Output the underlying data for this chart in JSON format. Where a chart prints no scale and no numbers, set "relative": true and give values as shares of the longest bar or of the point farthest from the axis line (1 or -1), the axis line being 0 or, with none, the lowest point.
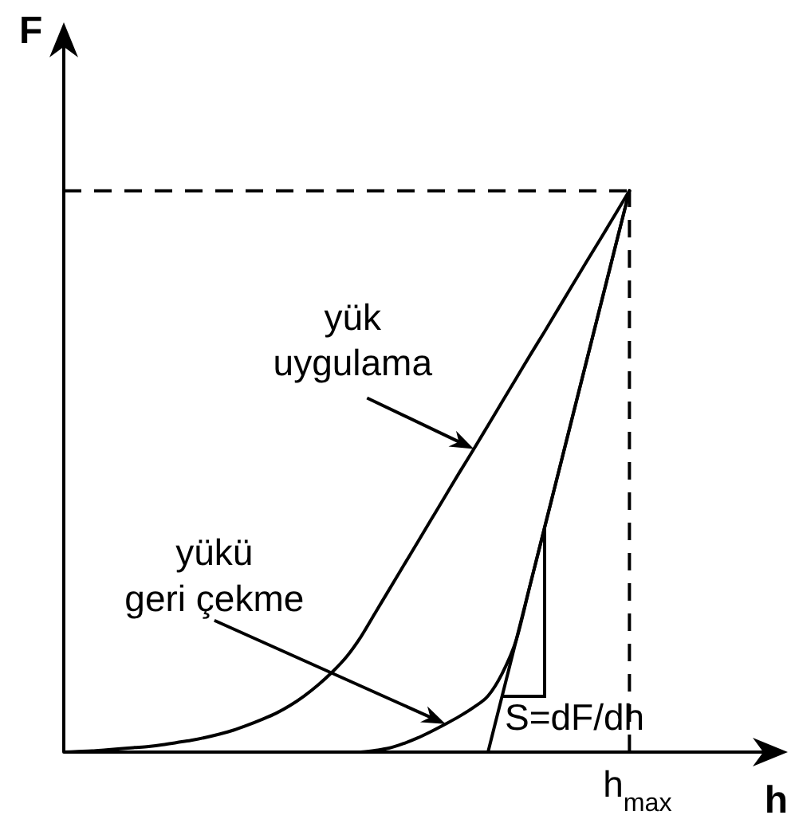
{
  "chart_data": {
    "type": "line",
    "relative": true,
    "xlabel": "h",
    "ylabel": "F",
    "categories": [
      null,
      null,
      null,
      null,
      null,
      null,
      null,
      null,
      null,
      null,
      null,
      null,
      null,
      null,
      null,
      null,
      null,
      null,
      null,
      null,
      null,
      null,
      null,
      null,
      null,
      null,
      null,
      null,
      null,
      null,
      null,
      null,
      null,
      null,
      null,
      null,
      null,
      null,
      null,
      null,
      null
    ],
    "series": [
      {
        "color": "#000000",
        "values": [
          0,
          0.001,
          0.002,
          0.004,
          0.006,
          0.008,
          0.01,
          0.013,
          0.017,
          0.021,
          0.026,
          0.032,
          0.039,
          0.048,
          0.058,
          0.069,
          0.083,
          0.1,
          0.12,
          0.143,
          0.17,
          0.205,
          0.247,
          0.289,
          0.331,
          0.373,
          0.415,
          0.457,
          0.499,
          0.54,
          0.582,
          0.624,
          0.666,
          0.708,
          0.749,
          0.791,
          0.833,
          0.875,
          0.916,
          0.958,
          1
        ]
      },
      {
        "color": "#000000",
        "values": [
          null,
          null,
          null,
          null,
          null,
          null,
          null,
          null,
          null,
          null,
          null,
          null,
          null,
          null,
          null,
          null,
          null,
          null,
          null,
          null,
          null,
          0,
          0.003,
          0.007,
          0.015,
          0.025,
          0.037,
          0.05,
          0.064,
          0.08,
          0.1,
          0.14,
          0.2,
          0.3,
          0.4,
          0.5,
          0.6,
          0.7,
          0.8,
          0.9,
          1
        ]
      },
      {
        "color": "#000000",
        "values": [
          null,
          null,
          null,
          null,
          null,
          null,
          null,
          null,
          null,
          null,
          null,
          null,
          null,
          null,
          null,
          null,
          null,
          null,
          null,
          null,
          null,
          null,
          null,
          null,
          null,
          null,
          null,
          null,
          null,
          null,
          0,
          0.1,
          0.2,
          0.3,
          0.4,
          0.5,
          0.6,
          0.7,
          0.8,
          0.9,
          1
        ]
      }
    ],
    "ref_lines": [
      {
        "axis": "x",
        "label": "h$_{max}$",
        "line_style": "dashed"
      },
      {
        "axis": "y",
        "value": 1,
        "line_style": "dashed"
      }
    ],
    "annotations": [
      "yük\nuygulama",
      "yükü\ngeri çekme",
      "S=dF/dh"
    ]
  }
}
